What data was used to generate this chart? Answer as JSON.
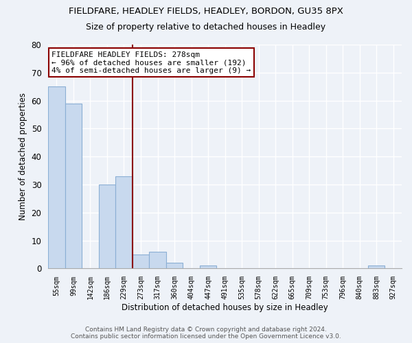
{
  "title": "FIELDFARE, HEADLEY FIELDS, HEADLEY, BORDON, GU35 8PX",
  "subtitle": "Size of property relative to detached houses in Headley",
  "xlabel": "Distribution of detached houses by size in Headley",
  "ylabel": "Number of detached properties",
  "bin_labels": [
    "55sqm",
    "99sqm",
    "142sqm",
    "186sqm",
    "229sqm",
    "273sqm",
    "317sqm",
    "360sqm",
    "404sqm",
    "447sqm",
    "491sqm",
    "535sqm",
    "578sqm",
    "622sqm",
    "665sqm",
    "709sqm",
    "753sqm",
    "796sqm",
    "840sqm",
    "883sqm",
    "927sqm"
  ],
  "bar_heights": [
    65,
    59,
    0,
    30,
    33,
    5,
    6,
    2,
    0,
    1,
    0,
    0,
    0,
    0,
    0,
    0,
    0,
    0,
    0,
    1,
    0
  ],
  "bar_color": "#c8d9ee",
  "bar_edge_color": "#8bafd4",
  "subject_line_color": "#8b0000",
  "annotation_line1": "FIELDFARE HEADLEY FIELDS: 278sqm",
  "annotation_line2": "← 96% of detached houses are smaller (192)",
  "annotation_line3": "4% of semi-detached houses are larger (9) →",
  "annotation_box_color": "white",
  "annotation_box_edge": "#8b0000",
  "ylim": [
    0,
    80
  ],
  "yticks": [
    0,
    10,
    20,
    30,
    40,
    50,
    60,
    70,
    80
  ],
  "footer_line1": "Contains HM Land Registry data © Crown copyright and database right 2024.",
  "footer_line2": "Contains public sector information licensed under the Open Government Licence v3.0.",
  "bg_color": "#eef2f8",
  "plot_bg_color": "#eef2f8",
  "grid_color": "#ffffff",
  "title_fontsize": 9.5,
  "subtitle_fontsize": 9,
  "ylabel_fontsize": 8.5,
  "xlabel_fontsize": 8.5,
  "annotation_fontsize": 8,
  "footer_fontsize": 6.5
}
